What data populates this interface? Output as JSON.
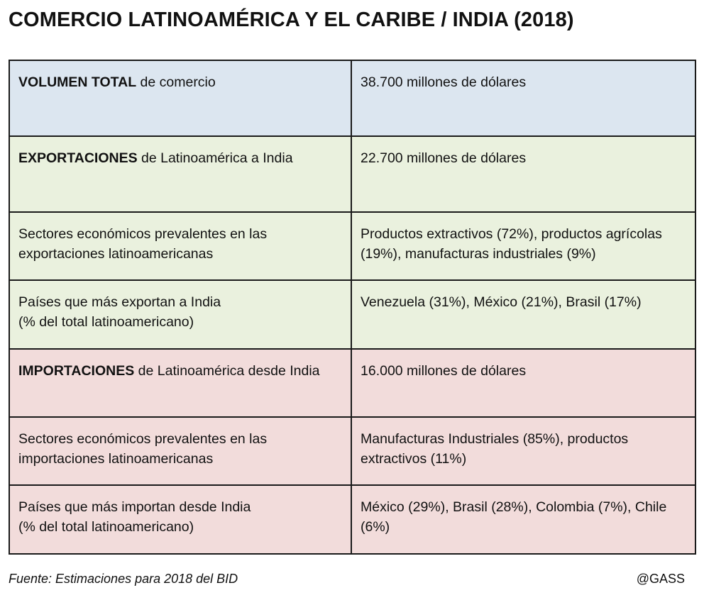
{
  "title": "COMERCIO LATINOAMÉRICA Y EL CARIBE / INDIA (2018)",
  "colors": {
    "total_row_bg": "#dce6f0",
    "exports_rows_bg": "#eaf1de",
    "imports_rows_bg": "#f2dcdb",
    "border": "#1a1a1a"
  },
  "rows": [
    {
      "label_bold": "VOLUMEN TOTAL",
      "label_rest": " de comercio",
      "value": "38.700 millones de dólares"
    },
    {
      "label_bold": "EXPORTACIONES",
      "label_rest": " de Latinoamérica a India",
      "value": "22.700 millones de dólares"
    },
    {
      "label_line1": "Sectores económicos prevalentes en las",
      "label_line2": "exportaciones latinoamericanas",
      "value": "Productos extractivos (72%), productos agrícolas (19%), manufacturas industriales (9%)"
    },
    {
      "label_line1": "Países que más exportan a India",
      "label_line2": "(% del total latinoamericano)",
      "value": "Venezuela (31%), México (21%), Brasil (17%)"
    },
    {
      "label_bold": "IMPORTACIONES",
      "label_rest": " de Latinoamérica desde India",
      "value": "16.000 millones de dólares"
    },
    {
      "label_line1": "Sectores económicos prevalentes en las",
      "label_line2": "importaciones latinoamericanas",
      "value": "Manufacturas Industriales (85%), productos extractivos (11%)"
    },
    {
      "label_line1": "Países que más importan desde India",
      "label_line2": "(% del total latinoamericano)",
      "value": "México (29%), Brasil (28%), Colombia (7%), Chile (6%)"
    }
  ],
  "footer": {
    "source": "Fuente: Estimaciones para 2018 del BID",
    "credit": "@GASS"
  }
}
